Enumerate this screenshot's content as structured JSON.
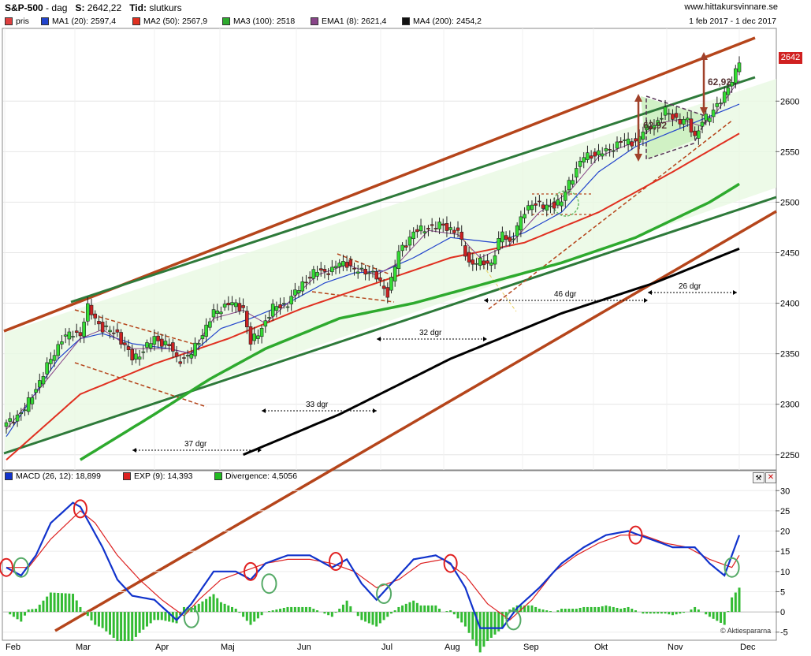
{
  "header": {
    "title": "S&P-500",
    "sep": "-",
    "period": "dag",
    "close_label": "S:",
    "close_value": "2642,22",
    "time_label": "Tid:",
    "time_value": "slutkurs",
    "website": "www.hittakursvinnare.se",
    "date_range": "1 feb 2017 - 1 dec 2017"
  },
  "legend": [
    {
      "label": "pris",
      "color": "#e04040"
    },
    {
      "label": "MA1 (20): 2597,4",
      "color": "#2244cc"
    },
    {
      "label": "MA2 (50): 2567,9",
      "color": "#e03020"
    },
    {
      "label": "MA3 (100): 2518",
      "color": "#2eaa2e"
    },
    {
      "label": "EMA1 (8): 2621,4",
      "color": "#884488"
    },
    {
      "label": "MA4 (200): 2454,2",
      "color": "#111111"
    }
  ],
  "macd_legend": [
    {
      "label": "MACD (26, 12): 18,899",
      "color": "#1133cc"
    },
    {
      "label": "EXP (9): 14,393",
      "color": "#dd2222"
    },
    {
      "label": "Divergence: 4,5056",
      "color": "#22bb22"
    }
  ],
  "copyright": "© Aktiespararna",
  "price_badge": "2642",
  "chart_data": {
    "type": "line",
    "title": "S&P-500",
    "price_axis": {
      "ylim": [
        2235,
        2672
      ],
      "ticks": [
        2250,
        2300,
        2350,
        2400,
        2450,
        2500,
        2550,
        2600
      ]
    },
    "macd_axis": {
      "ylim": [
        -7,
        32
      ],
      "ticks": [
        -5,
        0,
        5,
        10,
        15,
        20,
        25,
        30
      ]
    },
    "months": [
      "Feb",
      "Mar",
      "Apr",
      "Maj",
      "Jun",
      "Jul",
      "Aug",
      "Sep",
      "Okt",
      "Nov",
      "Dec"
    ],
    "annotations": {
      "gap_label": "62,92",
      "span_37": "37 dgr",
      "span_33": "33 dgr",
      "span_32": "32 dgr",
      "span_46": "46 dgr",
      "span_26": "26 dgr"
    },
    "price_anchors": [
      [
        0,
        2280
      ],
      [
        5,
        2295
      ],
      [
        10,
        2330
      ],
      [
        15,
        2365
      ],
      [
        18,
        2370
      ],
      [
        20,
        2370
      ],
      [
        22,
        2395
      ],
      [
        26,
        2375
      ],
      [
        30,
        2370
      ],
      [
        34,
        2345
      ],
      [
        36,
        2350
      ],
      [
        40,
        2365
      ],
      [
        44,
        2358
      ],
      [
        46,
        2345
      ],
      [
        48,
        2345
      ],
      [
        50,
        2350
      ],
      [
        53,
        2370
      ],
      [
        56,
        2390
      ],
      [
        60,
        2400
      ],
      [
        64,
        2395
      ],
      [
        66,
        2360
      ],
      [
        68,
        2370
      ],
      [
        72,
        2395
      ],
      [
        76,
        2400
      ],
      [
        80,
        2420
      ],
      [
        84,
        2432
      ],
      [
        88,
        2432
      ],
      [
        90,
        2440
      ],
      [
        92,
        2440
      ],
      [
        94,
        2432
      ],
      [
        98,
        2432
      ],
      [
        100,
        2425
      ],
      [
        103,
        2410
      ],
      [
        106,
        2450
      ],
      [
        110,
        2470
      ],
      [
        114,
        2475
      ],
      [
        118,
        2477
      ],
      [
        122,
        2470
      ],
      [
        125,
        2440
      ],
      [
        128,
        2440
      ],
      [
        131,
        2440
      ],
      [
        134,
        2470
      ],
      [
        136,
        2460
      ],
      [
        140,
        2490
      ],
      [
        142,
        2500
      ],
      [
        145,
        2495
      ],
      [
        150,
        2500
      ],
      [
        152,
        2520
      ],
      [
        156,
        2545
      ],
      [
        162,
        2550
      ],
      [
        166,
        2560
      ],
      [
        170,
        2560
      ],
      [
        172,
        2570
      ],
      [
        176,
        2580
      ],
      [
        178,
        2590
      ],
      [
        182,
        2580
      ],
      [
        184,
        2580
      ],
      [
        186,
        2565
      ],
      [
        188,
        2580
      ],
      [
        190,
        2585
      ],
      [
        192,
        2598
      ],
      [
        194,
        2605
      ],
      [
        196,
        2620
      ],
      [
        198,
        2642
      ]
    ],
    "ma20_anchors": [
      [
        0,
        2268
      ],
      [
        14,
        2345
      ],
      [
        20,
        2365
      ],
      [
        26,
        2370
      ],
      [
        34,
        2360
      ],
      [
        44,
        2355
      ],
      [
        50,
        2350
      ],
      [
        58,
        2375
      ],
      [
        66,
        2385
      ],
      [
        76,
        2400
      ],
      [
        86,
        2420
      ],
      [
        94,
        2430
      ],
      [
        102,
        2432
      ],
      [
        110,
        2445
      ],
      [
        120,
        2465
      ],
      [
        132,
        2460
      ],
      [
        140,
        2470
      ],
      [
        150,
        2490
      ],
      [
        160,
        2530
      ],
      [
        170,
        2555
      ],
      [
        180,
        2570
      ],
      [
        190,
        2585
      ],
      [
        198,
        2597
      ]
    ],
    "ema8_anchors": [
      [
        0,
        2275
      ],
      [
        10,
        2320
      ],
      [
        20,
        2365
      ],
      [
        26,
        2374
      ],
      [
        34,
        2355
      ],
      [
        44,
        2355
      ],
      [
        50,
        2350
      ],
      [
        56,
        2385
      ],
      [
        64,
        2393
      ],
      [
        70,
        2380
      ],
      [
        76,
        2400
      ],
      [
        84,
        2428
      ],
      [
        92,
        2438
      ],
      [
        100,
        2428
      ],
      [
        106,
        2440
      ],
      [
        114,
        2472
      ],
      [
        122,
        2468
      ],
      [
        128,
        2445
      ],
      [
        136,
        2458
      ],
      [
        144,
        2490
      ],
      [
        152,
        2510
      ],
      [
        160,
        2545
      ],
      [
        170,
        2560
      ],
      [
        176,
        2578
      ],
      [
        182,
        2582
      ],
      [
        188,
        2575
      ],
      [
        192,
        2590
      ],
      [
        198,
        2621
      ]
    ],
    "ma50_anchors": [
      [
        0,
        2245
      ],
      [
        20,
        2310
      ],
      [
        40,
        2340
      ],
      [
        60,
        2365
      ],
      [
        80,
        2395
      ],
      [
        100,
        2420
      ],
      [
        120,
        2445
      ],
      [
        140,
        2460
      ],
      [
        160,
        2490
      ],
      [
        180,
        2530
      ],
      [
        198,
        2568
      ]
    ],
    "ma100_anchors": [
      [
        20,
        2245
      ],
      [
        40,
        2290
      ],
      [
        55,
        2325
      ],
      [
        70,
        2355
      ],
      [
        90,
        2385
      ],
      [
        110,
        2400
      ],
      [
        130,
        2420
      ],
      [
        150,
        2440
      ],
      [
        170,
        2465
      ],
      [
        190,
        2500
      ],
      [
        198,
        2518
      ]
    ],
    "ma200_anchors": [
      [
        64,
        2250
      ],
      [
        90,
        2290
      ],
      [
        120,
        2345
      ],
      [
        150,
        2390
      ],
      [
        175,
        2420
      ],
      [
        198,
        2454
      ]
    ],
    "macd_anchors": [
      [
        0,
        11
      ],
      [
        4,
        9
      ],
      [
        8,
        14
      ],
      [
        12,
        22
      ],
      [
        18,
        27
      ],
      [
        20,
        26
      ],
      [
        26,
        16
      ],
      [
        30,
        8
      ],
      [
        34,
        4
      ],
      [
        40,
        3
      ],
      [
        46,
        -2
      ],
      [
        50,
        2
      ],
      [
        56,
        10
      ],
      [
        62,
        10
      ],
      [
        66,
        8
      ],
      [
        70,
        12
      ],
      [
        76,
        14
      ],
      [
        82,
        14
      ],
      [
        88,
        11
      ],
      [
        92,
        13
      ],
      [
        96,
        7
      ],
      [
        100,
        3
      ],
      [
        104,
        7
      ],
      [
        110,
        13
      ],
      [
        116,
        14
      ],
      [
        120,
        12
      ],
      [
        124,
        6
      ],
      [
        128,
        -4
      ],
      [
        134,
        -4
      ],
      [
        138,
        1
      ],
      [
        144,
        6
      ],
      [
        150,
        12
      ],
      [
        156,
        16
      ],
      [
        162,
        19
      ],
      [
        168,
        20
      ],
      [
        174,
        18
      ],
      [
        180,
        16
      ],
      [
        186,
        16
      ],
      [
        190,
        12
      ],
      [
        194,
        9
      ],
      [
        198,
        19
      ]
    ],
    "signal_anchors": [
      [
        0,
        11
      ],
      [
        6,
        11
      ],
      [
        12,
        18
      ],
      [
        20,
        25
      ],
      [
        24,
        22
      ],
      [
        30,
        14
      ],
      [
        36,
        8
      ],
      [
        42,
        3
      ],
      [
        48,
        -1
      ],
      [
        52,
        3
      ],
      [
        58,
        8
      ],
      [
        64,
        10
      ],
      [
        70,
        12
      ],
      [
        76,
        13
      ],
      [
        82,
        13
      ],
      [
        88,
        12
      ],
      [
        94,
        10
      ],
      [
        100,
        6
      ],
      [
        106,
        8
      ],
      [
        112,
        12
      ],
      [
        118,
        13
      ],
      [
        124,
        9
      ],
      [
        130,
        2
      ],
      [
        136,
        -2
      ],
      [
        142,
        3
      ],
      [
        148,
        10
      ],
      [
        154,
        14
      ],
      [
        160,
        17
      ],
      [
        166,
        19
      ],
      [
        172,
        19
      ],
      [
        178,
        17
      ],
      [
        184,
        16
      ],
      [
        190,
        13
      ],
      [
        196,
        11
      ],
      [
        198,
        14
      ]
    ]
  }
}
